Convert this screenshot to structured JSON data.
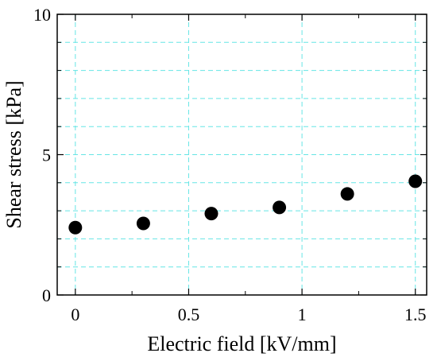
{
  "chart_data": {
    "type": "scatter",
    "xlabel": "Electric field [kV/mm]",
    "ylabel": "Shear stress [kPa]",
    "xlim": [
      -0.08,
      1.55
    ],
    "ylim": [
      0,
      10
    ],
    "x_ticks": [
      0,
      0.5,
      1,
      1.5
    ],
    "x_tick_labels": [
      "0",
      "0.5",
      "1",
      "1.5"
    ],
    "y_ticks": [
      0,
      5,
      10
    ],
    "y_tick_labels": [
      "0",
      "5",
      "10"
    ],
    "x_minor_ticks": [
      0.25,
      0.75,
      1.25
    ],
    "y_minor_ticks": [
      1,
      2,
      3,
      4,
      6,
      7,
      8,
      9
    ],
    "grid": true,
    "grid_color": "#66e5e5",
    "marker_color": "#000000",
    "series": [
      {
        "x": [
          0,
          0.3,
          0.6,
          0.9,
          1.2,
          1.5
        ],
        "y": [
          2.4,
          2.55,
          2.9,
          3.12,
          3.6,
          4.05
        ]
      }
    ]
  }
}
